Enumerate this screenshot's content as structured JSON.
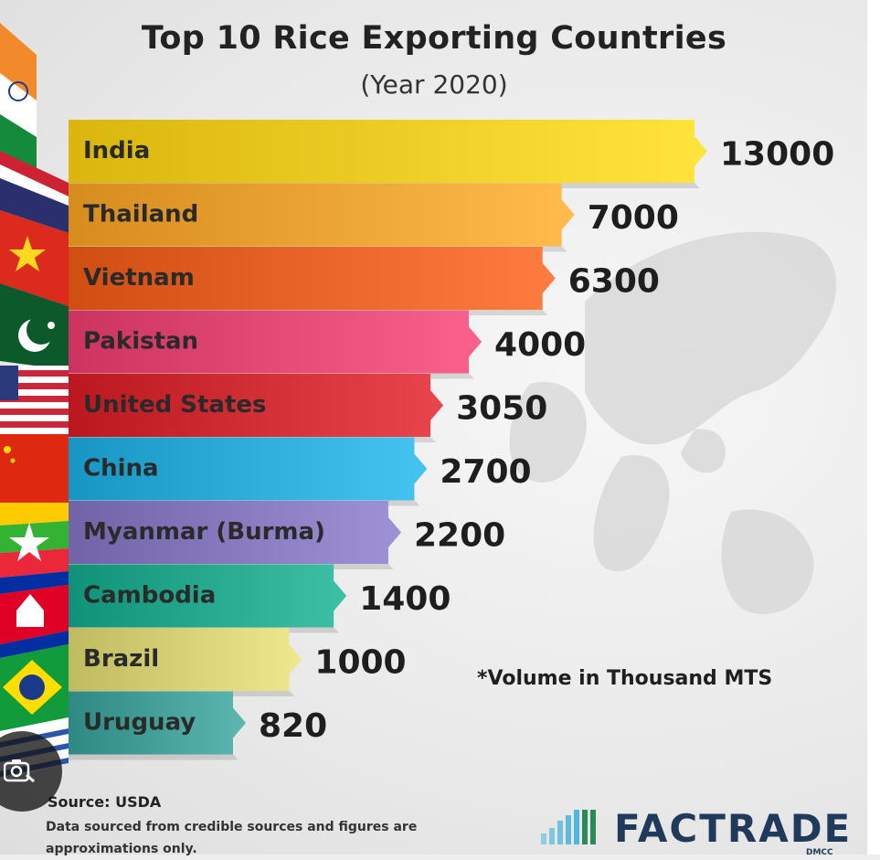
{
  "chart_data": {
    "type": "bar",
    "orientation": "horizontal",
    "title": "Top 10 Rice Exporting Countries",
    "subtitle": "(Year 2020)",
    "categories": [
      "India",
      "Thailand",
      "Vietnam",
      "Pakistan",
      "United States",
      "China",
      "Myanmar (Burma)",
      "Cambodia",
      "Brazil",
      "Uruguay"
    ],
    "values": [
      13000,
      7000,
      6300,
      4000,
      3050,
      2700,
      2200,
      1400,
      1000,
      820
    ],
    "value_labels": [
      "13000",
      "7000",
      "6300",
      "4000",
      "3050",
      "2700",
      "2200",
      "1400",
      "1000",
      "820"
    ],
    "unit_note": "*Volume in Thousand MTS",
    "colors": [
      "#f6d22a",
      "#f3a93a",
      "#ec6a2e",
      "#e94f7b",
      "#d7333b",
      "#33b2df",
      "#8d7fc4",
      "#2cae95",
      "#dcd67c",
      "#4aa59e"
    ],
    "grid": false,
    "legend": "none"
  },
  "footer": {
    "source": "Source: USDA",
    "disclaimer": "Data sourced from credible sources and figures are approximations only.",
    "logo_text": "FACTRADE",
    "logo_sub": "DMCC"
  },
  "icons": {
    "overlay": "camera-search-icon"
  }
}
